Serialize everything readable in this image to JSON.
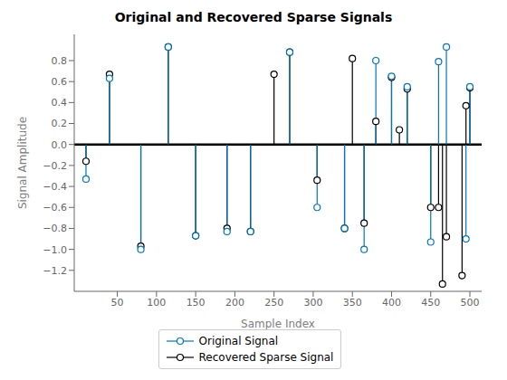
{
  "chart_data": {
    "type": "stem",
    "title": "Original and Recovered Sparse Signals",
    "xlabel": "Sample Index",
    "ylabel": "Signal Amplitude",
    "xlim": [
      -5,
      515
    ],
    "ylim": [
      -1.4,
      1.05
    ],
    "xticks": [
      50,
      100,
      150,
      200,
      250,
      300,
      350,
      400,
      450,
      500
    ],
    "yticks": [
      {
        "value": -1.2,
        "label": "−1.2"
      },
      {
        "value": -1.0,
        "label": "−1.0"
      },
      {
        "value": -0.8,
        "label": "−0.8"
      },
      {
        "value": -0.6,
        "label": "−0.6"
      },
      {
        "value": -0.4,
        "label": "−0.4"
      },
      {
        "value": -0.2,
        "label": "−0.2"
      },
      {
        "value": 0.0,
        "label": "0.0"
      },
      0.2,
      0.4,
      0.6,
      0.8
    ],
    "grid": false,
    "legend": "bottom",
    "series": [
      {
        "name": "Original Signal",
        "color": "#0077bb",
        "marker": "circle",
        "x": [
          10,
          40,
          80,
          115,
          150,
          190,
          220,
          270,
          305,
          340,
          365,
          380,
          400,
          420,
          450,
          460,
          470,
          495,
          500
        ],
        "values": [
          -0.33,
          0.63,
          -1.0,
          0.93,
          -0.87,
          -0.83,
          -0.83,
          0.88,
          -0.6,
          -0.8,
          -1.0,
          0.8,
          0.65,
          0.55,
          -0.93,
          0.79,
          0.93,
          -0.9,
          0.55
        ]
      },
      {
        "name": "Recovered Sparse Signal",
        "color": "#000000",
        "marker": "circle",
        "x": [
          10,
          40,
          80,
          115,
          150,
          190,
          220,
          250,
          270,
          305,
          340,
          350,
          365,
          380,
          400,
          410,
          420,
          450,
          460,
          465,
          470,
          490,
          495,
          500
        ],
        "values": [
          -0.16,
          0.67,
          -0.97,
          0.93,
          -0.87,
          -0.8,
          -0.83,
          0.67,
          0.88,
          -0.34,
          -0.8,
          0.82,
          -0.75,
          0.22,
          0.64,
          0.14,
          0.53,
          -0.6,
          -0.6,
          -1.33,
          -0.88,
          -1.25,
          0.37,
          0.54
        ]
      }
    ]
  }
}
